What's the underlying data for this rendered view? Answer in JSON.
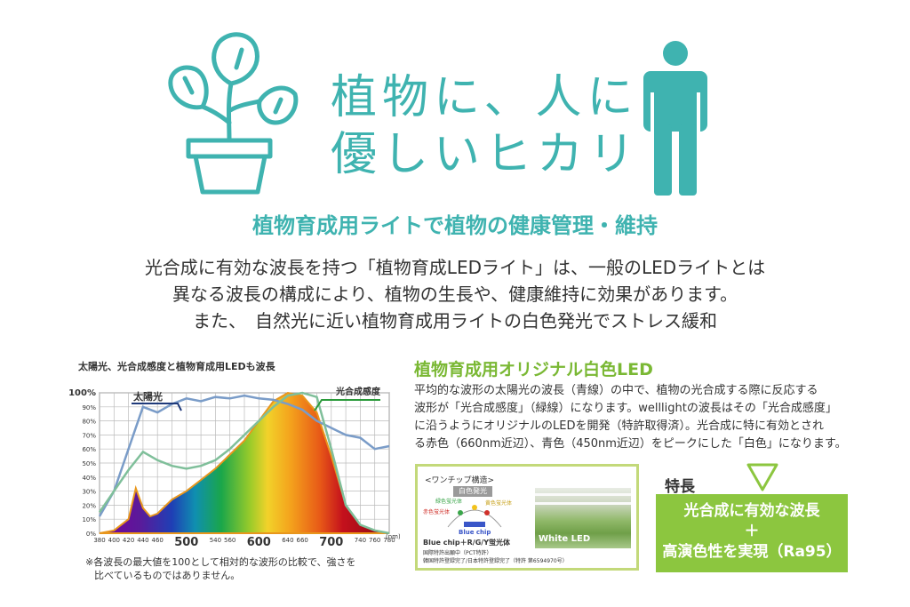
{
  "hero": {
    "title_line1": "植物に、人に",
    "title_line2": "優しいヒカリ"
  },
  "subheading": "植物育成用ライトで植物の健康管理・維持",
  "intro": {
    "line1": "光合成に有効な波長を持つ「植物育成LEDライト」は、一般のLEDライトとは",
    "line2": "異なる波長の構成により、植物の生長や、健康維持に効果があります。",
    "line3": "また、　自然光に近い植物育成用ライトの白色発光でストレス緩和"
  },
  "chart_data": {
    "type": "line",
    "title": "太陽光、光合成感度と植物育成用LEDも波長",
    "xlabel": "(nm)",
    "xlim": [
      380,
      780
    ],
    "ylim": [
      0,
      100
    ],
    "x_ticks": [
      {
        "value": 380,
        "label": "380"
      },
      {
        "value": 400,
        "label": "400"
      },
      {
        "value": 420,
        "label": "420"
      },
      {
        "value": 440,
        "label": "440"
      },
      {
        "value": 460,
        "label": "460"
      },
      {
        "value": 500,
        "label": "500"
      },
      {
        "value": 540,
        "label": "540"
      },
      {
        "value": 560,
        "label": "560"
      },
      {
        "value": 600,
        "label": "600"
      },
      {
        "value": 640,
        "label": "640"
      },
      {
        "value": 660,
        "label": "660"
      },
      {
        "value": 700,
        "label": "700"
      },
      {
        "value": 740,
        "label": "740"
      },
      {
        "value": 760,
        "label": "760"
      },
      {
        "value": 780,
        "label": "780"
      }
    ],
    "y_ticks": [
      "0%",
      "10%",
      "20%",
      "30%",
      "40%",
      "50%",
      "60%",
      "70%",
      "80%",
      "90%",
      "100%"
    ],
    "grid": true,
    "series": [
      {
        "name": "太陽光",
        "color": "#7a9cc8",
        "x": [
          380,
          400,
          420,
          440,
          460,
          480,
          500,
          520,
          540,
          560,
          580,
          600,
          620,
          640,
          660,
          680,
          700,
          720,
          740,
          760,
          780
        ],
        "y": [
          12,
          30,
          60,
          90,
          86,
          92,
          96,
          94,
          97,
          96,
          98,
          96,
          95,
          92,
          88,
          80,
          75,
          70,
          68,
          60,
          62
        ]
      },
      {
        "name": "光合成感度",
        "color": "#7fbf9a",
        "x": [
          380,
          400,
          420,
          440,
          460,
          480,
          500,
          520,
          540,
          560,
          580,
          600,
          620,
          640,
          660,
          680,
          700,
          720,
          740,
          760,
          780
        ],
        "y": [
          15,
          30,
          45,
          58,
          52,
          48,
          46,
          48,
          52,
          60,
          70,
          80,
          90,
          98,
          100,
          97,
          60,
          20,
          6,
          2,
          0
        ]
      },
      {
        "name": "LED",
        "color": "#e8961c",
        "x": [
          380,
          400,
          420,
          430,
          440,
          450,
          460,
          480,
          500,
          520,
          540,
          560,
          580,
          600,
          620,
          640,
          660,
          680,
          700,
          720,
          740,
          760,
          780
        ],
        "y": [
          0,
          2,
          10,
          32,
          18,
          12,
          14,
          24,
          30,
          38,
          46,
          56,
          66,
          80,
          94,
          100,
          98,
          86,
          55,
          20,
          6,
          2,
          0
        ]
      }
    ],
    "annotations": [
      "太陽光",
      "光合成感度"
    ]
  },
  "chart_labels": {
    "sunlight": "太陽光",
    "photosynthesis": "光合成感度",
    "big_tick_500": "500",
    "big_tick_600": "600",
    "big_tick_700": "700"
  },
  "footnote": {
    "line1": "※各波長の最大値を100として相対的な波形の比較で、強さを",
    "line2": "比べているものではありません。"
  },
  "led_section": {
    "title": "植物育成用オリジナル白色LED",
    "desc_line1": "平均的な波形の太陽光の波長（青線）の中で、植物の光合成する際に反応する",
    "desc_line2": "波形が「光合成感度」（緑線）になります。welllightの波長はその「光合成感度」",
    "desc_line3": "に沿うようにオリジナルのLEDを開発（特許取得済）。光合成に特に有効とされ",
    "desc_line4": "る赤色（660nm近辺）、青色（450nm近辺）をピークにした「白色」になります。"
  },
  "chip_box": {
    "heading": "<ワンチップ構造>",
    "white_light": "白色発光",
    "green": "緑色蛍光体",
    "yellow": "黄色蛍光体",
    "red": "赤色蛍光体",
    "blue_chip": "Blue chip",
    "formula": "Blue chip＋R/G/Y蛍光体",
    "patent1": "国際特許出願中（PCT特許）",
    "patent2": "韓国特許登録完了/日本特許登録完了（特許 第6594970号）",
    "photo_label": "White LED"
  },
  "features": {
    "label": "特長",
    "line1": "光合成に有効な波長",
    "plus": "＋",
    "line2": "高演色性を実現（Ra95）"
  },
  "colors": {
    "teal": "#3fb3b0",
    "green": "#8cc63f",
    "led_title": "#7ab834"
  }
}
